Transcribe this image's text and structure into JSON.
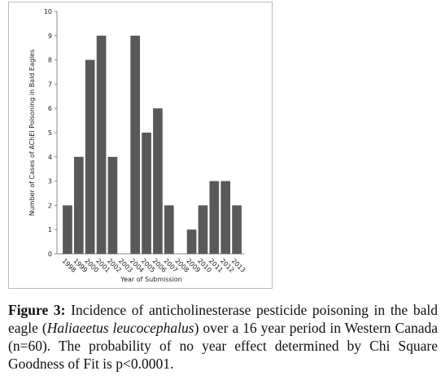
{
  "chart_data": {
    "type": "bar",
    "x_label": "Year of Submission",
    "y_label": "Number of Cases of AChEI Poisoning in Bald Eagles",
    "categories": [
      "1998",
      "1999",
      "2000",
      "2001",
      "2002",
      "2003",
      "2004",
      "2005",
      "2006",
      "2007",
      "2008",
      "2009",
      "2010",
      "2011",
      "2012",
      "2013"
    ],
    "values": [
      2,
      4,
      8,
      9,
      4,
      0,
      9,
      5,
      6,
      2,
      0,
      1,
      2,
      3,
      3,
      2
    ],
    "color": "#595959",
    "ylim": [
      0,
      10
    ],
    "yticks": [
      0,
      1,
      2,
      3,
      4,
      5,
      6,
      7,
      8,
      9,
      10
    ],
    "grid": false
  },
  "caption": {
    "label": "Figure 3:",
    "text_before": " Incidence of anticholinesterase pesticide poisoning in the bald eagle (",
    "species": "Haliaeetus leucocephalus",
    "text_after": ") over a 16 year period in Western Canada (n=60). The probability of no year effect determined by Chi Square Goodness of Fit is p<0.0001."
  }
}
